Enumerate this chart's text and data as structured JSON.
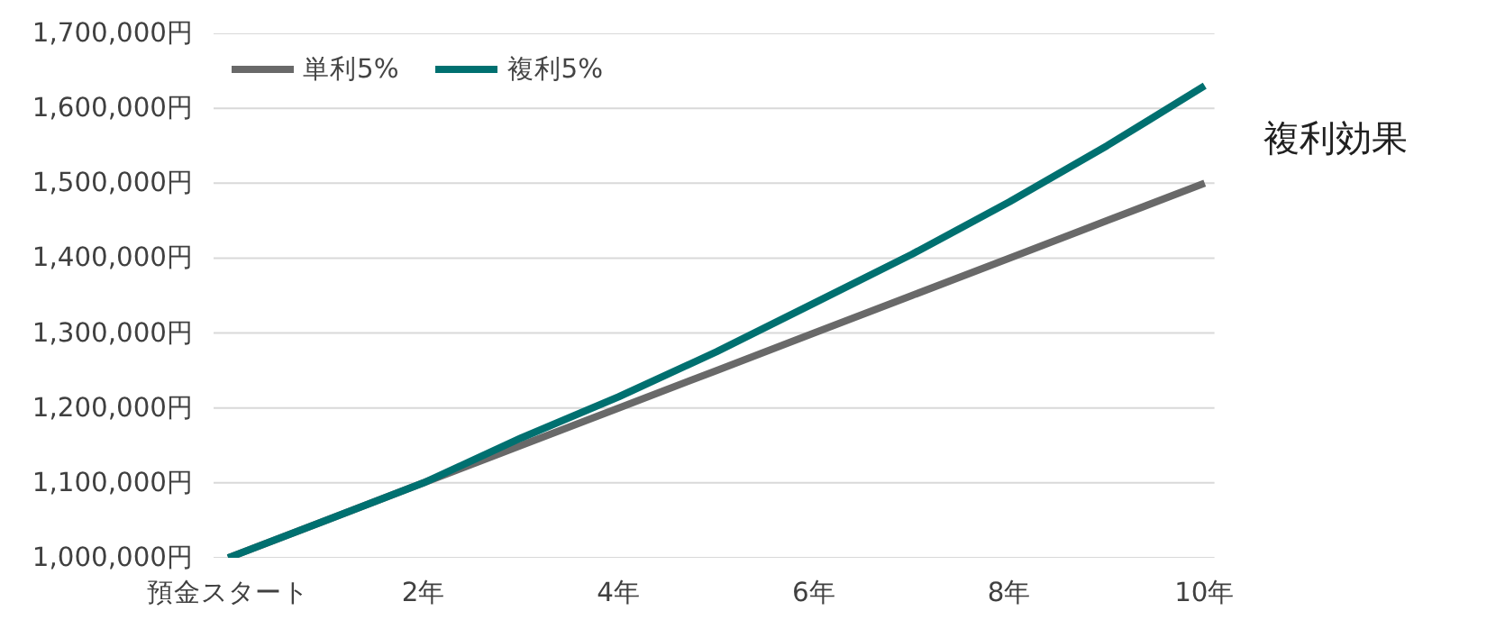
{
  "chart_data": {
    "type": "line",
    "categories": [
      "預金スタート",
      null,
      "2年",
      null,
      "4年",
      null,
      "6年",
      null,
      "8年",
      null,
      "10年"
    ],
    "series": [
      {
        "name": "単利5%",
        "color": "#696969",
        "values": [
          1000000,
          1050000,
          1100000,
          1150000,
          1200000,
          1250000,
          1300000,
          1350000,
          1400000,
          1450000,
          1500000
        ]
      },
      {
        "name": "複利5%",
        "color": "#007070",
        "values": [
          1000000,
          1050000,
          1100000,
          1160000,
          1215000,
          1275000,
          1340000,
          1405000,
          1475000,
          1550000,
          1630000
        ]
      }
    ],
    "ylim": [
      1000000,
      1700000
    ],
    "yticks": [
      {
        "value": 1000000,
        "label": "1,000,000円"
      },
      {
        "value": 1100000,
        "label": "1,100,000円"
      },
      {
        "value": 1200000,
        "label": "1,200,000円"
      },
      {
        "value": 1300000,
        "label": "1,300,000円"
      },
      {
        "value": 1400000,
        "label": "1,400,000円"
      },
      {
        "value": 1500000,
        "label": "1,500,000円"
      },
      {
        "value": 1600000,
        "label": "1,600,000円"
      },
      {
        "value": 1700000,
        "label": "1,700,000円"
      }
    ],
    "grid": "y",
    "legend": "top left",
    "marker": "none",
    "line_style": "solid",
    "annotations": [
      "複利効果"
    ]
  }
}
